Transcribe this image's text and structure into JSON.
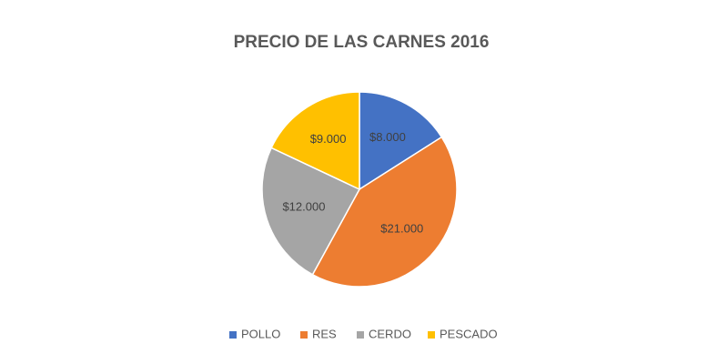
{
  "chart_data": {
    "type": "pie",
    "title": "PRECIO DE LAS CARNES 2016",
    "categories": [
      "POLLO",
      "RES",
      "CERDO",
      "PESCADO"
    ],
    "values": [
      8000,
      21000,
      12000,
      9000
    ],
    "value_labels": [
      "$8.000",
      "$21.000",
      "$12.000",
      "$9.000"
    ],
    "colors": [
      "#4472c4",
      "#ed7d31",
      "#a5a5a5",
      "#ffc000"
    ],
    "legend": "bottom"
  }
}
